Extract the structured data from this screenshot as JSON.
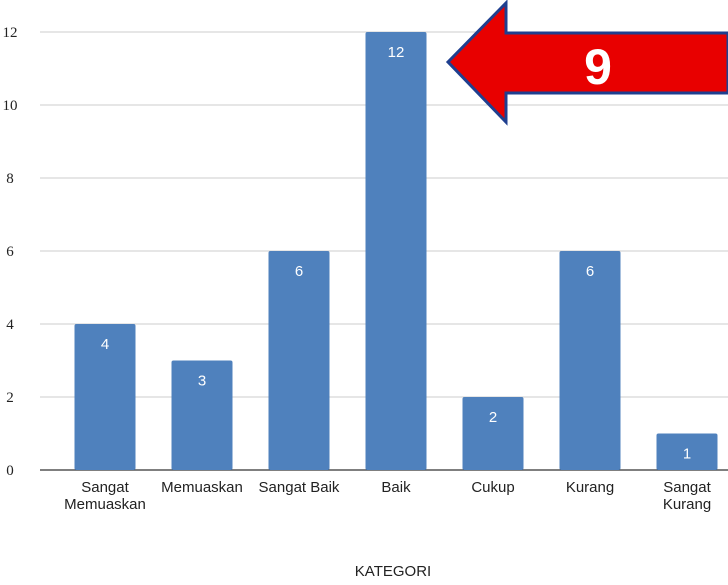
{
  "chart_data": {
    "type": "bar",
    "categories": [
      [
        "Sangat",
        "Memuaskan"
      ],
      [
        "Memuaskan"
      ],
      [
        "Sangat Baik"
      ],
      [
        "Baik"
      ],
      [
        "Cukup"
      ],
      [
        "Kurang"
      ],
      [
        "Sangat",
        "Kurang"
      ]
    ],
    "values": [
      4,
      3,
      6,
      12,
      2,
      6,
      1
    ],
    "data_labels": [
      "4",
      "3",
      "6",
      "12",
      "2",
      "6",
      "1"
    ],
    "yticks": [
      "0",
      "2",
      "4",
      "6",
      "8",
      "10",
      "12"
    ],
    "ylim": [
      0,
      12
    ],
    "xlabel": "KATEGORI",
    "ylabel": "",
    "title": "",
    "grid": true,
    "bar_color": "#4f81bd",
    "annotation": {
      "text": "9",
      "shape": "arrow pointing left",
      "fill": "#e80000",
      "stroke": "#1f3f8f"
    }
  }
}
